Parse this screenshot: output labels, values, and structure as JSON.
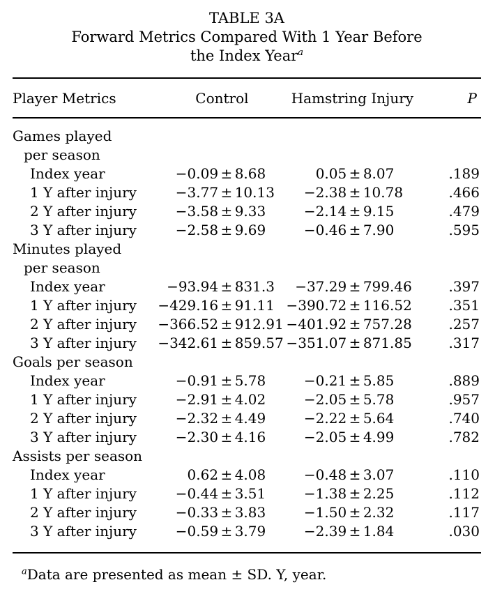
{
  "colors": {
    "text": "#000000",
    "background": "#ffffff",
    "rule": "#000000"
  },
  "title": {
    "line1": "TABLE 3A",
    "line2": "Forward Metrics Compared With 1 Year Before",
    "line3": "the Index Year",
    "line3_sup": "a"
  },
  "header": {
    "metrics": "Player Metrics",
    "control": "Control",
    "hamstring": "Hamstring Injury",
    "p": "P"
  },
  "plus_minus": "±",
  "sections": [
    {
      "label_lines": [
        "Games played",
        "per season"
      ],
      "rows": [
        {
          "label": "Index year",
          "control_mean": "−0.09",
          "control_sd": "8.68",
          "hamstring_mean": "0.05",
          "hamstring_sd": "8.07",
          "p": ".189"
        },
        {
          "label": "1 Y after injury",
          "control_mean": "−3.77",
          "control_sd": "10.13",
          "hamstring_mean": "−2.38",
          "hamstring_sd": "10.78",
          "p": ".466"
        },
        {
          "label": "2 Y after injury",
          "control_mean": "−3.58",
          "control_sd": "9.33",
          "hamstring_mean": "−2.14",
          "hamstring_sd": "9.15",
          "p": ".479"
        },
        {
          "label": "3 Y after injury",
          "control_mean": "−2.58",
          "control_sd": "9.69",
          "hamstring_mean": "−0.46",
          "hamstring_sd": "7.90",
          "p": ".595"
        }
      ]
    },
    {
      "label_lines": [
        "Minutes played",
        "per season"
      ],
      "rows": [
        {
          "label": "Index year",
          "control_mean": "−93.94",
          "control_sd": "831.3",
          "hamstring_mean": "−37.29",
          "hamstring_sd": "799.46",
          "p": ".397"
        },
        {
          "label": "1 Y after injury",
          "control_mean": "−429.16",
          "control_sd": "91.11",
          "hamstring_mean": "−390.72",
          "hamstring_sd": "116.52",
          "p": ".351"
        },
        {
          "label": "2 Y after injury",
          "control_mean": "−366.52",
          "control_sd": "912.91",
          "hamstring_mean": "−401.92",
          "hamstring_sd": "757.28",
          "p": ".257"
        },
        {
          "label": "3 Y after injury",
          "control_mean": "−342.61",
          "control_sd": "859.57",
          "hamstring_mean": "−351.07",
          "hamstring_sd": "871.85",
          "p": ".317"
        }
      ]
    },
    {
      "label_lines": [
        "Goals per season"
      ],
      "rows": [
        {
          "label": "Index year",
          "control_mean": "−0.91",
          "control_sd": "5.78",
          "hamstring_mean": "−0.21",
          "hamstring_sd": "5.85",
          "p": ".889"
        },
        {
          "label": "1 Y after injury",
          "control_mean": "−2.91",
          "control_sd": "4.02",
          "hamstring_mean": "−2.05",
          "hamstring_sd": "5.78",
          "p": ".957"
        },
        {
          "label": "2 Y after injury",
          "control_mean": "−2.32",
          "control_sd": "4.49",
          "hamstring_mean": "−2.22",
          "hamstring_sd": "5.64",
          "p": ".740"
        },
        {
          "label": "3 Y after injury",
          "control_mean": "−2.30",
          "control_sd": "4.16",
          "hamstring_mean": "−2.05",
          "hamstring_sd": "4.99",
          "p": ".782"
        }
      ]
    },
    {
      "label_lines": [
        "Assists per season"
      ],
      "rows": [
        {
          "label": "Index year",
          "control_mean": "0.62",
          "control_sd": "4.08",
          "hamstring_mean": "−0.48",
          "hamstring_sd": "3.07",
          "p": ".110"
        },
        {
          "label": "1 Y after injury",
          "control_mean": "−0.44",
          "control_sd": "3.51",
          "hamstring_mean": "−1.38",
          "hamstring_sd": "2.25",
          "p": ".112"
        },
        {
          "label": "2 Y after injury",
          "control_mean": "−0.33",
          "control_sd": "3.83",
          "hamstring_mean": "−1.50",
          "hamstring_sd": "2.32",
          "p": ".117"
        },
        {
          "label": "3 Y after injury",
          "control_mean": "−0.59",
          "control_sd": "3.79",
          "hamstring_mean": "−2.39",
          "hamstring_sd": "1.84",
          "p": ".030"
        }
      ]
    }
  ],
  "footnote": {
    "sup": "a",
    "text": "Data are presented as mean ± SD. Y, year."
  }
}
